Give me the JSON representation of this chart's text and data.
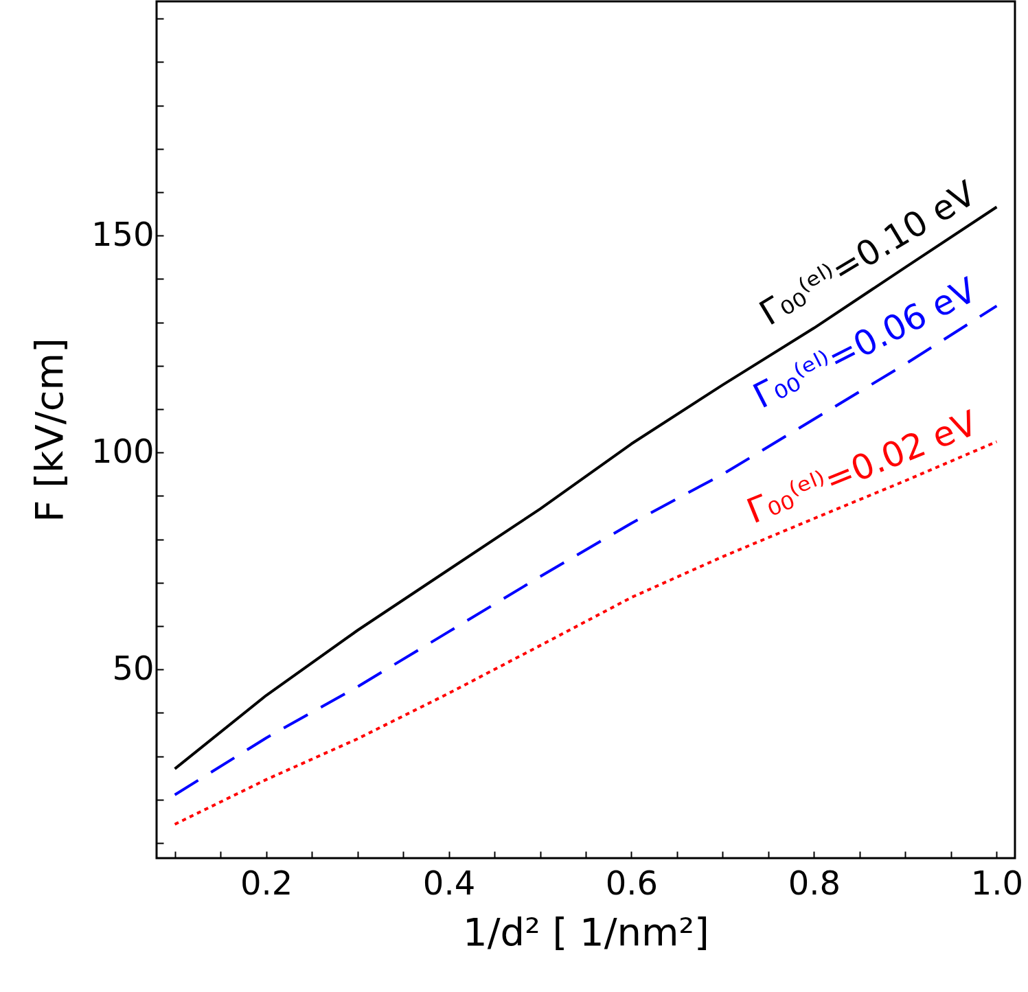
{
  "chart_data": {
    "type": "line",
    "xlabel": "1/d² [ 1/nm²]",
    "ylabel": "F [kV/cm]",
    "x": [
      0.1,
      0.2,
      0.3,
      0.4,
      0.5,
      0.6,
      0.7,
      0.8,
      0.9,
      1.0
    ],
    "series": [
      {
        "name": "Γ₀₀⁽ᵉˡ⁾=0.10 eV",
        "color": "#000000",
        "line_style": "solid",
        "values": [
          27.1,
          44,
          59,
          73,
          87,
          102,
          115.6,
          128.7,
          142.7,
          156.6
        ]
      },
      {
        "name": "Γ₀₀⁽ᵉˡ⁾=0.06 eV",
        "color": "#0000ff",
        "line_style": "dashed",
        "values": [
          21.1,
          34.2,
          46,
          58.7,
          71.4,
          83.7,
          95,
          107.7,
          120.4,
          133.8
        ]
      },
      {
        "name": "Γ₀₀⁽ᵉˡ⁾=0.02 eV",
        "color": "#ff0000",
        "line_style": "dotted",
        "values": [
          14.3,
          24.6,
          34,
          44.5,
          55.5,
          66.6,
          76,
          84.8,
          93.5,
          102.5
        ]
      }
    ],
    "xlim": [
      0.08,
      1.02
    ],
    "ylim": [
      6.5,
      204
    ],
    "xticks": [
      {
        "value": 0.1,
        "label": null
      },
      {
        "value": 0.15,
        "label": null
      },
      {
        "value": 0.2,
        "label": "0.2"
      },
      {
        "value": 0.25,
        "label": null
      },
      {
        "value": 0.3,
        "label": null
      },
      {
        "value": 0.35,
        "label": null
      },
      {
        "value": 0.4,
        "label": "0.4"
      },
      {
        "value": 0.45,
        "label": null
      },
      {
        "value": 0.5,
        "label": null
      },
      {
        "value": 0.55,
        "label": null
      },
      {
        "value": 0.6,
        "label": "0.6"
      },
      {
        "value": 0.65,
        "label": null
      },
      {
        "value": 0.7,
        "label": null
      },
      {
        "value": 0.75,
        "label": null
      },
      {
        "value": 0.8,
        "label": "0.8"
      },
      {
        "value": 0.85,
        "label": null
      },
      {
        "value": 0.9,
        "label": null
      },
      {
        "value": 0.95,
        "label": null
      },
      {
        "value": 1.0,
        "label": "1.0"
      }
    ],
    "yticks": [
      {
        "value": 10,
        "label": null
      },
      {
        "value": 20,
        "label": null
      },
      {
        "value": 30,
        "label": null
      },
      {
        "value": 40,
        "label": null
      },
      50,
      {
        "value": 60,
        "label": null
      },
      {
        "value": 70,
        "label": null
      },
      {
        "value": 80,
        "label": null
      },
      {
        "value": 90,
        "label": null
      },
      100,
      {
        "value": 110,
        "label": null
      },
      {
        "value": 120,
        "label": null
      },
      {
        "value": 130,
        "label": null
      },
      {
        "value": 140,
        "label": null
      },
      150,
      {
        "value": 160,
        "label": null
      },
      {
        "value": 170,
        "label": null
      },
      {
        "value": 180,
        "label": null
      },
      {
        "value": 190,
        "label": null
      },
      {
        "value": 200,
        "label": null
      }
    ],
    "grid": false,
    "legend": false
  }
}
